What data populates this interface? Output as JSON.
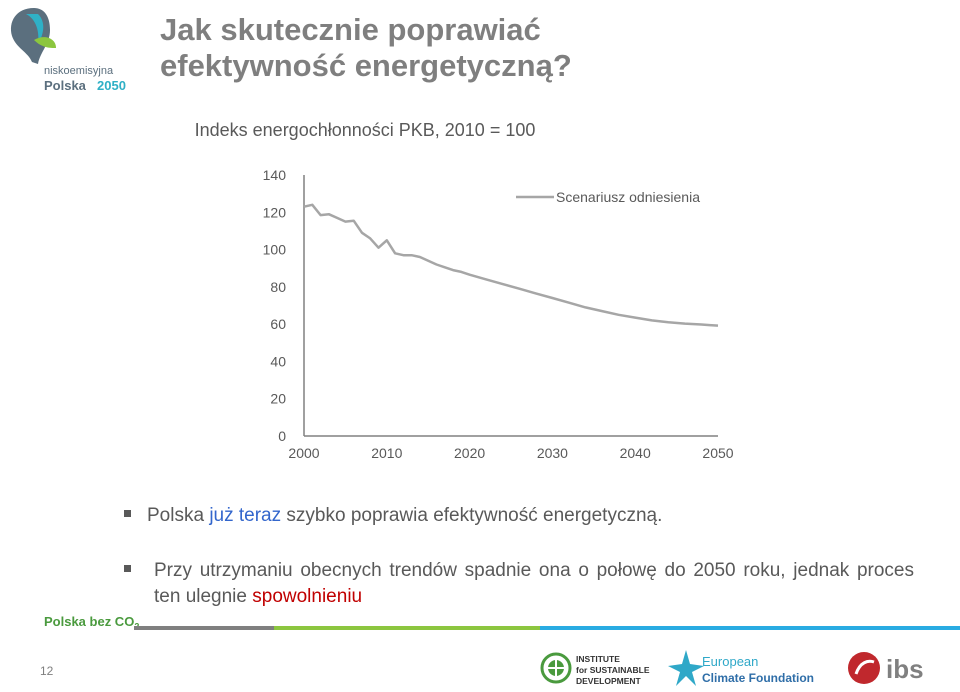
{
  "slide": {
    "title_line1": "Jak skutecznie poprawiać",
    "title_line2": "efektywność energetyczną?",
    "page_number": "12"
  },
  "logo": {
    "line1": "niskoemisyjna",
    "line2": "Polska",
    "line3": "2050"
  },
  "chart_data": {
    "type": "line",
    "title": "Indeks energochłonności PKB, 2010 = 100",
    "xlabel": "",
    "ylabel": "",
    "xlim": [
      2000,
      2050
    ],
    "ylim": [
      0,
      140
    ],
    "x_ticks": [
      "2000",
      "2010",
      "2020",
      "2030",
      "2040",
      "2050"
    ],
    "y_ticks": [
      "0",
      "20",
      "40",
      "60",
      "80",
      "100",
      "120",
      "140"
    ],
    "grid": false,
    "legend_position": "top-right",
    "series": [
      {
        "name": "Scenariusz odniesienia",
        "color": "#a6a6a6",
        "x": [
          2000,
          2001,
          2002,
          2003,
          2004,
          2005,
          2006,
          2007,
          2008,
          2009,
          2010,
          2011,
          2012,
          2013,
          2014,
          2015,
          2016,
          2017,
          2018,
          2019,
          2020,
          2022,
          2024,
          2026,
          2028,
          2030,
          2032,
          2034,
          2036,
          2038,
          2040,
          2042,
          2044,
          2046,
          2048,
          2049,
          2050
        ],
        "y": [
          123.0,
          124.0,
          118.5,
          119.0,
          117.0,
          115.0,
          115.5,
          109.0,
          106.0,
          101.0,
          105.0,
          98.0,
          97.0,
          97.0,
          96.0,
          94.0,
          92.0,
          90.5,
          89.0,
          88.0,
          86.5,
          84.0,
          81.5,
          79.0,
          76.5,
          74.0,
          71.5,
          69.0,
          67.0,
          65.0,
          63.5,
          62.0,
          61.0,
          60.3,
          59.8,
          59.5,
          59.2
        ]
      }
    ]
  },
  "bullets": {
    "b1_pre": "Polska ",
    "b1_em": "już teraz",
    "b1_post": " szybko poprawia efektywność energetyczną.",
    "b2_pre": "Przy utrzymaniu obecnych trendów spadnie ona o połowę do 2050 roku, jednak proces ten ulegnie ",
    "b2_em": "spowolnieniu"
  },
  "footer": {
    "brand_text": "Polska bez CO",
    "brand_sub": "2",
    "bar_colors": [
      "#7f7f7f",
      "#8cc63f",
      "#29abe2"
    ]
  },
  "partners": {
    "isd_line1": "INSTITUTE",
    "isd_line2": "for SUSTAINABLE",
    "isd_line3": "DEVELOPMENT",
    "ecf_line1": "European",
    "ecf_line2": "Climate Foundation",
    "ibs_text": "ibs"
  }
}
